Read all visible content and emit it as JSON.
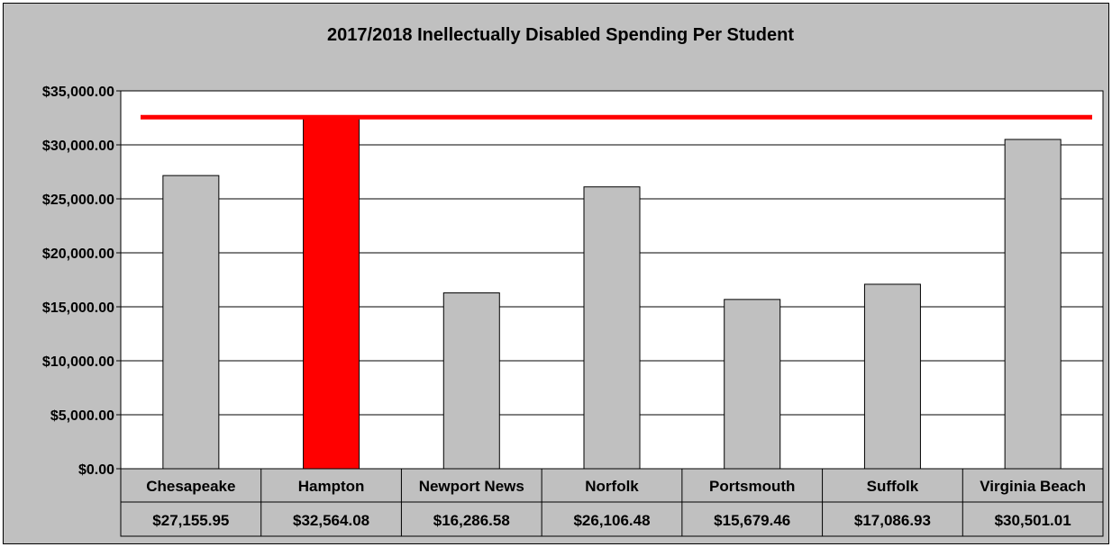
{
  "chart_data": {
    "type": "bar",
    "title": "2017/2018 Inellectually Disabled Spending Per Student",
    "xlabel": "",
    "ylabel": "",
    "categories": [
      "Chesapeake",
      "Hampton",
      "Newport News",
      "Norfolk",
      "Portsmouth",
      "Suffolk",
      "Virginia Beach"
    ],
    "values": [
      27155.95,
      32564.08,
      16286.58,
      26106.48,
      15679.46,
      17086.93,
      30501.01
    ],
    "data_table_labels": [
      "$27,155.95",
      "$32,564.08",
      "$16,286.58",
      "$26,106.48",
      "$15,679.46",
      "$17,086.93",
      "$30,501.01"
    ],
    "highlight_category": "Hampton",
    "reference_line_value": 32564.08,
    "ylim": [
      0,
      35000
    ],
    "yticks": [
      0,
      5000,
      10000,
      15000,
      20000,
      25000,
      30000,
      35000
    ],
    "ytick_labels": [
      "$0.00",
      "$5,000.00",
      "$10,000.00",
      "$15,000.00",
      "$20,000.00",
      "$25,000.00",
      "$30,000.00",
      "$35,000.00"
    ],
    "grid": true,
    "legend": "none",
    "colors": {
      "bar": "#c0c0c0",
      "highlight_bar": "#ff0000",
      "reference_line": "#ff0000",
      "plot_background": "#ffffff",
      "chart_background": "#c0c0c0",
      "gridline": "#000000"
    }
  }
}
